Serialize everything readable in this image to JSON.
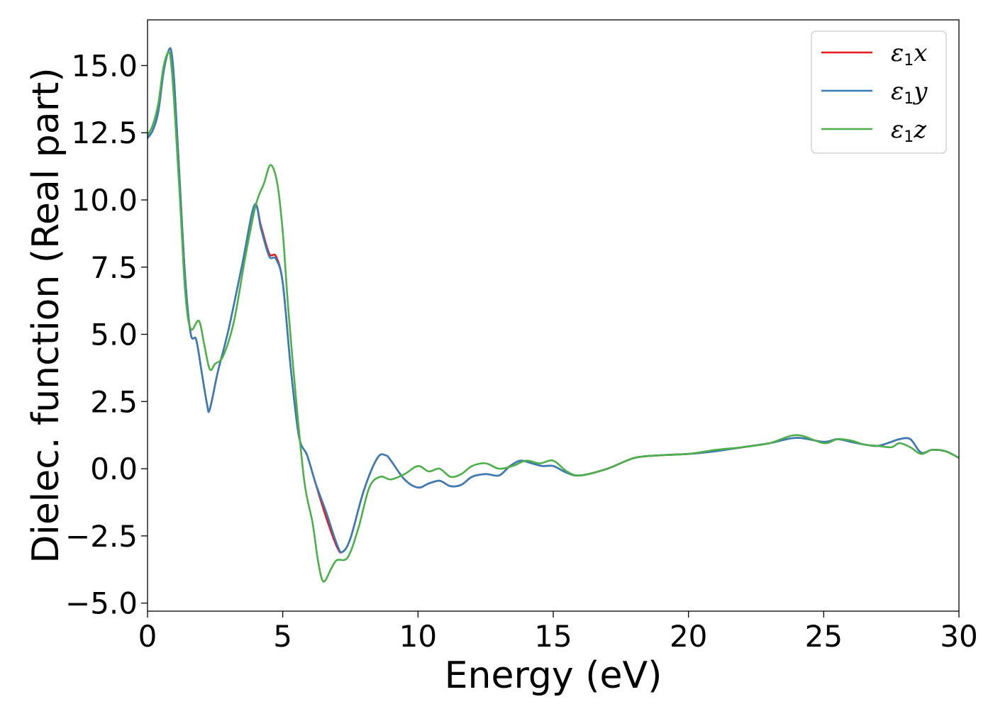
{
  "chart_data": {
    "type": "line",
    "title": "",
    "xlabel": "Energy (eV)",
    "ylabel": "Dielec. function (Real part)",
    "xlim": [
      0,
      30
    ],
    "ylim": [
      -5.3,
      16.7
    ],
    "xticks": [
      0,
      5,
      10,
      15,
      20,
      25,
      30
    ],
    "xtick_labels": [
      "0",
      "5",
      "10",
      "15",
      "20",
      "25",
      "30"
    ],
    "yticks": [
      -5.0,
      -2.5,
      0.0,
      2.5,
      5.0,
      7.5,
      10.0,
      12.5,
      15.0
    ],
    "ytick_labels": [
      "−5.0",
      "−2.5",
      "0.0",
      "2.5",
      "5.0",
      "7.5",
      "10.0",
      "12.5",
      "15.0"
    ],
    "grid": false,
    "legend_position": "top-right",
    "series": [
      {
        "name": "ε1x",
        "name_base": "ε",
        "name_sub": "1",
        "name_var": "x",
        "color": "#e41a1c",
        "x": [
          0,
          0.2,
          0.4,
          0.6,
          0.8,
          0.9,
          1.0,
          1.2,
          1.4,
          1.6,
          1.8,
          2.0,
          2.2,
          2.3,
          2.6,
          3.0,
          3.5,
          3.95,
          4.2,
          4.5,
          4.75,
          5.0,
          5.3,
          5.6,
          5.9,
          6.2,
          6.6,
          7.0,
          7.2,
          7.5,
          8.0,
          8.5,
          8.8,
          9.0,
          9.5,
          10.0,
          10.4,
          10.8,
          11.2,
          11.6,
          12.0,
          12.5,
          13.0,
          13.4,
          13.8,
          14.2,
          14.6,
          15.0,
          15.5,
          16.0,
          17.0,
          18.0,
          19.0,
          20.0,
          21.0,
          22.0,
          23.0,
          24.0,
          25.0,
          25.5,
          26.0,
          26.5,
          27.0,
          27.5,
          27.8,
          28.2,
          28.6,
          29.0,
          29.5,
          30.0
        ],
        "y": [
          12.3,
          12.6,
          13.3,
          14.8,
          15.6,
          15.4,
          14.2,
          10.5,
          7.0,
          5.0,
          4.8,
          3.6,
          2.4,
          2.2,
          3.6,
          5.2,
          7.6,
          9.8,
          9.0,
          8.0,
          7.9,
          6.9,
          3.7,
          1.2,
          0.5,
          -0.5,
          -1.8,
          -2.9,
          -3.1,
          -2.6,
          -0.8,
          0.4,
          0.5,
          0.3,
          -0.4,
          -0.7,
          -0.55,
          -0.45,
          -0.65,
          -0.6,
          -0.3,
          -0.2,
          -0.25,
          0.1,
          0.3,
          0.2,
          0.1,
          0.1,
          -0.15,
          -0.25,
          0.0,
          0.4,
          0.5,
          0.55,
          0.65,
          0.8,
          0.95,
          1.15,
          1.0,
          1.1,
          1.0,
          0.9,
          0.85,
          1.0,
          1.1,
          1.1,
          0.6,
          0.7,
          0.65,
          0.4
        ]
      },
      {
        "name": "ε1y",
        "name_base": "ε",
        "name_sub": "1",
        "name_var": "y",
        "color": "#377eb8",
        "x": [
          0,
          0.2,
          0.4,
          0.6,
          0.8,
          0.9,
          1.0,
          1.2,
          1.4,
          1.6,
          1.8,
          2.0,
          2.2,
          2.3,
          2.6,
          3.0,
          3.5,
          3.95,
          4.2,
          4.5,
          4.75,
          5.0,
          5.3,
          5.6,
          5.9,
          6.2,
          6.6,
          7.0,
          7.2,
          7.5,
          8.0,
          8.5,
          8.8,
          9.0,
          9.5,
          10.0,
          10.4,
          10.8,
          11.2,
          11.6,
          12.0,
          12.5,
          13.0,
          13.4,
          13.8,
          14.2,
          14.6,
          15.0,
          15.5,
          16.0,
          17.0,
          18.0,
          19.0,
          20.0,
          21.0,
          22.0,
          23.0,
          24.0,
          25.0,
          25.5,
          26.0,
          26.5,
          27.0,
          27.5,
          27.8,
          28.2,
          28.6,
          29.0,
          29.5,
          30.0
        ],
        "y": [
          12.3,
          12.6,
          13.3,
          14.8,
          15.6,
          15.4,
          14.2,
          10.5,
          7.0,
          5.0,
          4.8,
          3.6,
          2.4,
          2.2,
          3.6,
          5.2,
          7.6,
          9.8,
          8.9,
          7.9,
          7.8,
          6.9,
          3.7,
          1.2,
          0.5,
          -0.5,
          -1.6,
          -2.8,
          -3.1,
          -2.6,
          -0.8,
          0.4,
          0.5,
          0.3,
          -0.4,
          -0.7,
          -0.55,
          -0.45,
          -0.65,
          -0.6,
          -0.3,
          -0.2,
          -0.25,
          0.1,
          0.3,
          0.2,
          0.1,
          0.1,
          -0.15,
          -0.25,
          0.0,
          0.4,
          0.5,
          0.55,
          0.65,
          0.8,
          0.95,
          1.15,
          1.0,
          1.1,
          1.0,
          0.9,
          0.85,
          1.0,
          1.1,
          1.1,
          0.6,
          0.7,
          0.65,
          0.4
        ]
      },
      {
        "name": "ε1z",
        "name_base": "ε",
        "name_sub": "1",
        "name_var": "z",
        "color": "#4daf4a",
        "x": [
          0,
          0.2,
          0.4,
          0.6,
          0.8,
          0.9,
          1.0,
          1.2,
          1.4,
          1.6,
          1.9,
          2.1,
          2.3,
          2.5,
          2.8,
          3.2,
          3.6,
          4.0,
          4.3,
          4.55,
          4.8,
          5.0,
          5.2,
          5.5,
          5.8,
          6.1,
          6.3,
          6.5,
          6.8,
          7.0,
          7.4,
          7.8,
          8.2,
          8.6,
          9.0,
          9.5,
          10.0,
          10.4,
          10.8,
          11.2,
          11.6,
          12.0,
          12.5,
          13.0,
          13.5,
          14.0,
          14.5,
          15.0,
          15.5,
          16.0,
          17.0,
          18.0,
          19.0,
          20.0,
          21.0,
          22.0,
          23.0,
          24.0,
          25.0,
          25.5,
          26.0,
          26.5,
          27.0,
          27.5,
          27.8,
          28.2,
          28.6,
          29.0,
          29.5,
          30.0
        ],
        "y": [
          12.4,
          12.8,
          13.6,
          15.0,
          15.5,
          14.8,
          13.4,
          10.0,
          6.5,
          5.2,
          5.5,
          4.6,
          3.7,
          3.9,
          4.2,
          5.5,
          7.8,
          9.8,
          10.6,
          11.3,
          10.6,
          8.8,
          6.0,
          2.5,
          -0.5,
          -2.0,
          -3.4,
          -4.2,
          -3.7,
          -3.4,
          -3.3,
          -2.2,
          -0.7,
          -0.3,
          -0.4,
          -0.2,
          0.1,
          -0.1,
          0.0,
          -0.3,
          -0.2,
          0.1,
          0.2,
          0.0,
          0.1,
          0.3,
          0.2,
          0.3,
          -0.1,
          -0.25,
          0.0,
          0.4,
          0.5,
          0.55,
          0.7,
          0.8,
          0.95,
          1.25,
          0.95,
          1.1,
          1.05,
          0.9,
          0.85,
          0.8,
          0.95,
          0.8,
          0.55,
          0.7,
          0.65,
          0.4
        ]
      }
    ]
  }
}
